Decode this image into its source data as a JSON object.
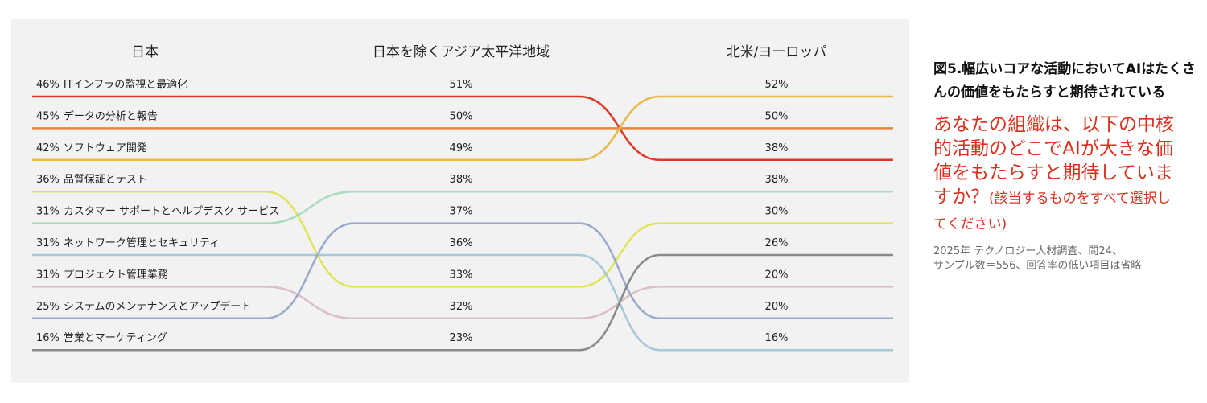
{
  "chart_data": {
    "type": "slope",
    "title": "図5.幅広いコアな活動においてAIはたくさんの価値をもたらすと期待されている",
    "subtitle": "あなたの組織は、以下の中核的活動のどこでAIが大きな価値をもたらすと期待していますか？",
    "subtitle_note": "(該当するものをすべて選択してください)",
    "note": [
      "2025年 テクノロジー人材調査、問24、",
      "サンプル数＝556、回答率の低い項目は省略"
    ],
    "columns": [
      "日本",
      "日本を除くアジア太平洋地域",
      "北米/ヨーロッパ"
    ],
    "series": [
      {
        "name": "ITインフラの監視と最適化",
        "color": "#d93a26",
        "values": [
          46,
          51,
          38
        ],
        "value_labels": [
          "46%",
          "51%",
          "38%"
        ]
      },
      {
        "name": "データの分析と報告",
        "color": "#e8843c",
        "values": [
          45,
          50,
          50
        ],
        "value_labels": [
          "45%",
          "50%",
          "50%"
        ]
      },
      {
        "name": "ソフトウェア開発",
        "color": "#e8b84a",
        "values": [
          42,
          49,
          52
        ],
        "value_labels": [
          "42%",
          "49%",
          "52%"
        ]
      },
      {
        "name": "品質保証とテスト",
        "color": "#dfe45a",
        "values": [
          36,
          33,
          30
        ],
        "value_labels": [
          "36%",
          "33%",
          "30%"
        ]
      },
      {
        "name": "カスタマー サポートとヘルプデスク サービス",
        "color": "#a8dcc0",
        "values": [
          31,
          38,
          38
        ],
        "value_labels": [
          "31%",
          "38%",
          "38%"
        ]
      },
      {
        "name": "ネットワーク管理とセキュリティ",
        "color": "#a6c8d8",
        "values": [
          31,
          36,
          16
        ],
        "value_labels": [
          "31%",
          "36%",
          "16%"
        ]
      },
      {
        "name": "プロジェクト管理業務",
        "color": "#dbbec6",
        "values": [
          31,
          32,
          20
        ],
        "value_labels": [
          "31%",
          "32%",
          "20%"
        ]
      },
      {
        "name": "システムのメンテナンスとアップデート",
        "color": "#9aaacb",
        "values": [
          25,
          37,
          20
        ],
        "value_labels": [
          "25%",
          "37%",
          "20%"
        ]
      },
      {
        "name": "営業とマーケティング",
        "color": "#8a8a8a",
        "values": [
          16,
          23,
          26
        ],
        "value_labels": [
          "16%",
          "23%",
          "26%"
        ]
      }
    ]
  }
}
